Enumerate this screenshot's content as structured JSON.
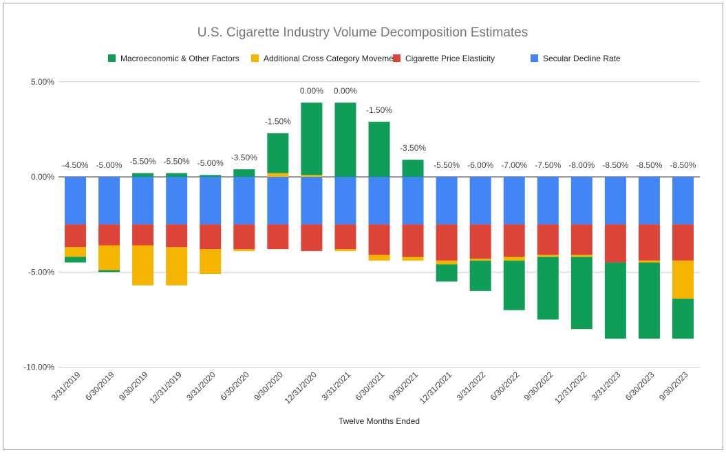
{
  "chart_data": {
    "type": "bar",
    "stacked": true,
    "title": "U.S. Cigarette Industry Volume Decomposition Estimates",
    "xlabel": "Twelve Months Ended",
    "ylabel": "",
    "ylim": [
      -10,
      5
    ],
    "yticks": [
      5,
      0,
      -5,
      -10
    ],
    "ytick_labels": [
      "5.00%",
      "0.00%",
      "-5.00%",
      "-10.00%"
    ],
    "grid": true,
    "legend_position": "top",
    "categories": [
      "3/31/2019",
      "6/30/2019",
      "9/30/2019",
      "12/31/2019",
      "3/31/2020",
      "6/30/2020",
      "9/30/2020",
      "12/31/2020",
      "3/31/2021",
      "6/30/2021",
      "9/30/2021",
      "12/31/2021",
      "3/31/2022",
      "6/30/2022",
      "9/30/2022",
      "12/31/2022",
      "3/31/2023",
      "6/30/2023",
      "9/30/2023"
    ],
    "series": [
      {
        "name": "Macroeconomic & Other Factors",
        "color": "#0f9d58",
        "values": [
          -0.3,
          -0.1,
          0.2,
          0.2,
          0.1,
          0.4,
          2.1,
          3.8,
          3.9,
          2.9,
          0.9,
          -0.9,
          -1.6,
          -2.6,
          -3.3,
          -3.8,
          -4.0,
          -4.0,
          -2.1
        ]
      },
      {
        "name": "Additional Cross Category Movement",
        "color": "#f4b400",
        "values": [
          -0.5,
          -1.3,
          -2.1,
          -2.0,
          -1.3,
          -0.1,
          0.2,
          0.1,
          -0.1,
          -0.3,
          -0.2,
          -0.2,
          -0.1,
          -0.2,
          -0.1,
          -0.1,
          0.0,
          -0.1,
          -2.0
        ]
      },
      {
        "name": "Cigarette Price Elasticity",
        "color": "#db4437",
        "values": [
          -1.2,
          -1.1,
          -1.1,
          -1.2,
          -1.3,
          -1.3,
          -1.3,
          -1.4,
          -1.3,
          -1.6,
          -1.7,
          -1.9,
          -1.8,
          -1.7,
          -1.6,
          -1.6,
          -2.0,
          -1.9,
          -1.9
        ]
      },
      {
        "name": "Secular Decline Rate",
        "color": "#4285f4",
        "values": [
          -2.5,
          -2.5,
          -2.5,
          -2.5,
          -2.5,
          -2.5,
          -2.5,
          -2.5,
          -2.5,
          -2.5,
          -2.5,
          -2.5,
          -2.5,
          -2.5,
          -2.5,
          -2.5,
          -2.5,
          -2.5,
          -2.5
        ]
      }
    ],
    "total_labels": [
      "-4.50%",
      "-5.00%",
      "-5.50%",
      "-5.50%",
      "-5.00%",
      "-3.50%",
      "-1.50%",
      "0.00%",
      "0.00%",
      "-1.50%",
      "-3.50%",
      "-5.50%",
      "-6.00%",
      "-7.00%",
      "-7.50%",
      "-8.00%",
      "-8.50%",
      "-8.50%",
      "-8.50%"
    ]
  }
}
